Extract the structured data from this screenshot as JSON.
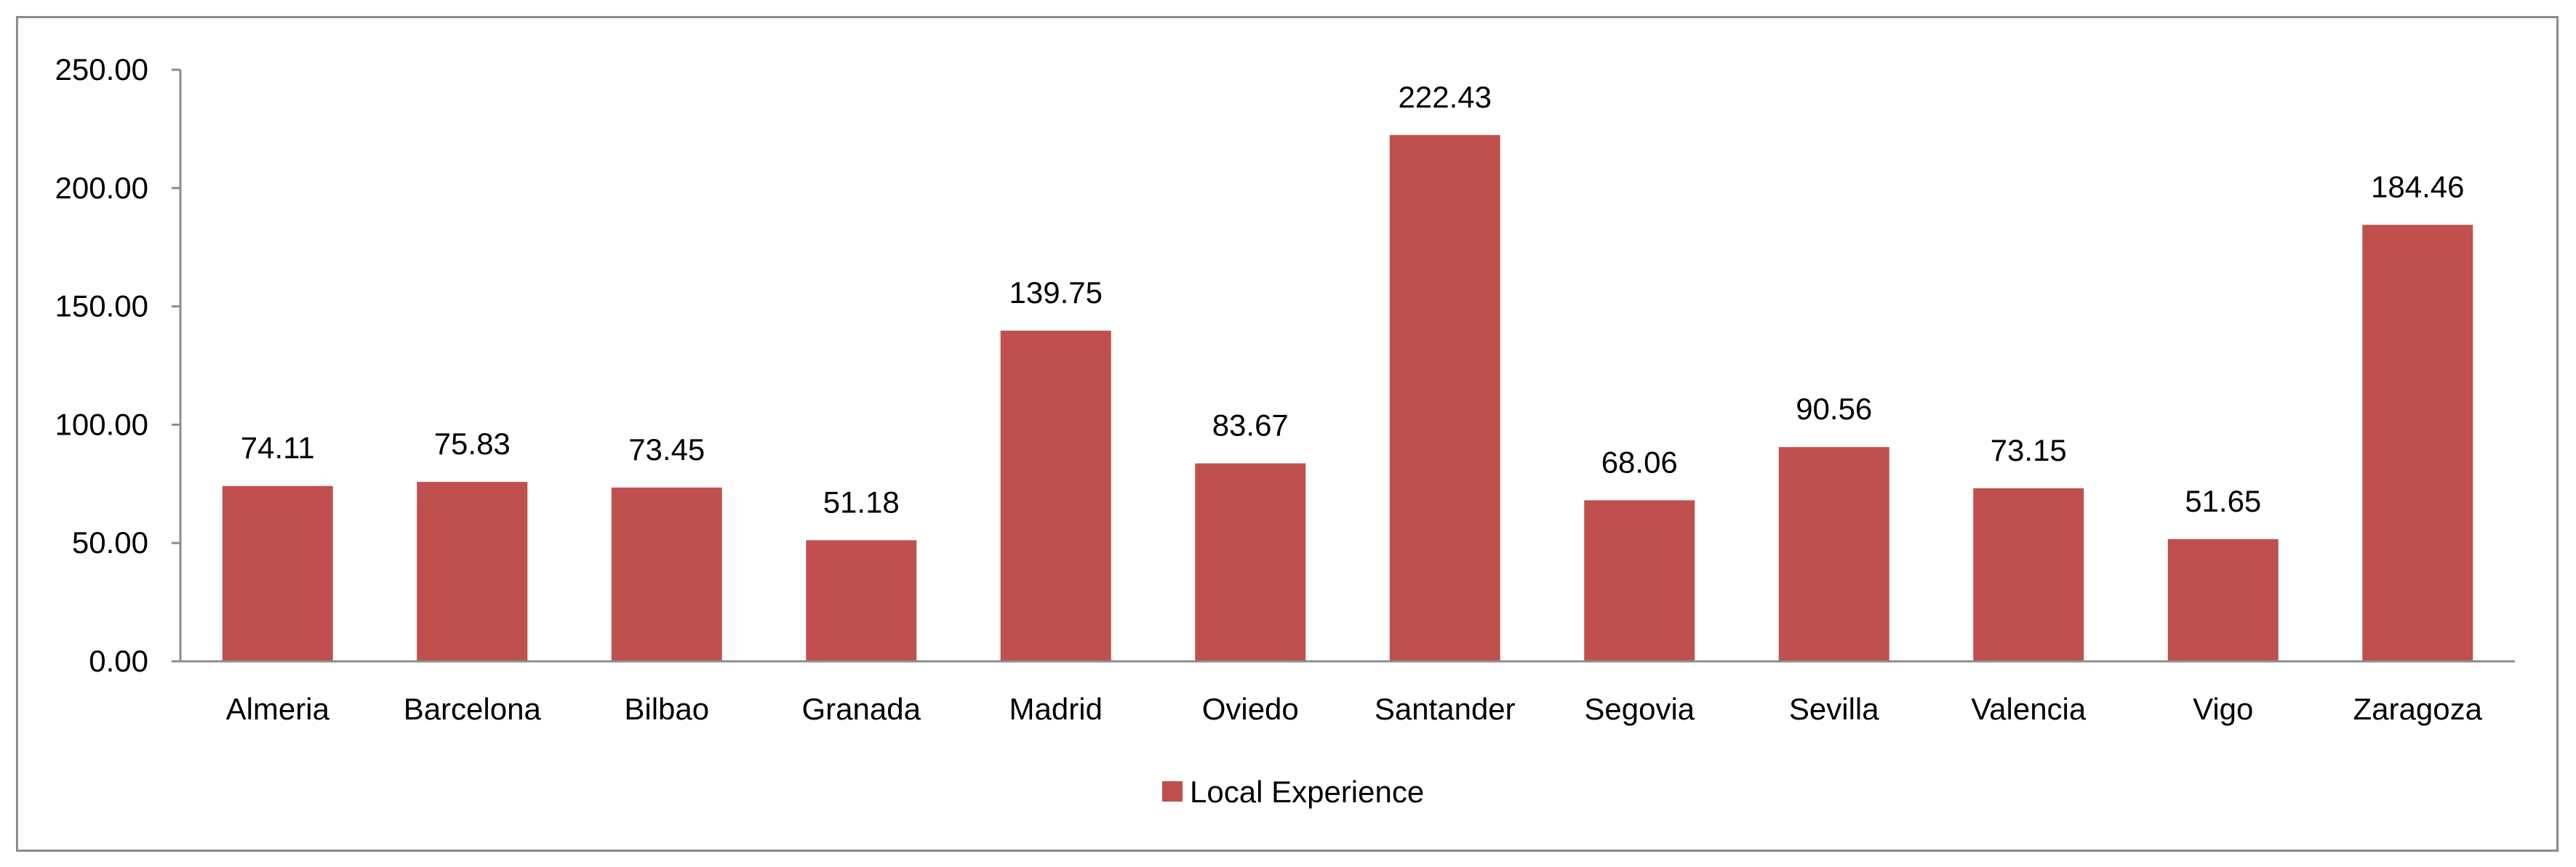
{
  "chart_data": {
    "type": "bar",
    "categories": [
      "Almeria",
      "Barcelona",
      "Bilbao",
      "Granada",
      "Madrid",
      "Oviedo",
      "Santander",
      "Segovia",
      "Sevilla",
      "Valencia",
      "Vigo",
      "Zaragoza"
    ],
    "series": [
      {
        "name": "Local Experience",
        "color": "#c0504d",
        "values": [
          74.11,
          75.83,
          73.45,
          51.18,
          139.75,
          83.67,
          222.43,
          68.06,
          90.56,
          73.15,
          51.65,
          184.46
        ],
        "labels": [
          "74.11",
          "75.83",
          "73.45",
          "51.18",
          "139.75",
          "83.67",
          "222.43",
          "68.06",
          "90.56",
          "73.15",
          "51.65",
          "184.46"
        ]
      }
    ],
    "ylim": [
      0,
      250
    ],
    "yticks": [
      0,
      50,
      100,
      150,
      200,
      250
    ],
    "ytick_labels": [
      "0.00",
      "50.00",
      "100.00",
      "150.00",
      "200.00",
      "250.00"
    ],
    "grid": false,
    "legend": {
      "position": "bottom",
      "entries": [
        "Local Experience"
      ]
    }
  }
}
